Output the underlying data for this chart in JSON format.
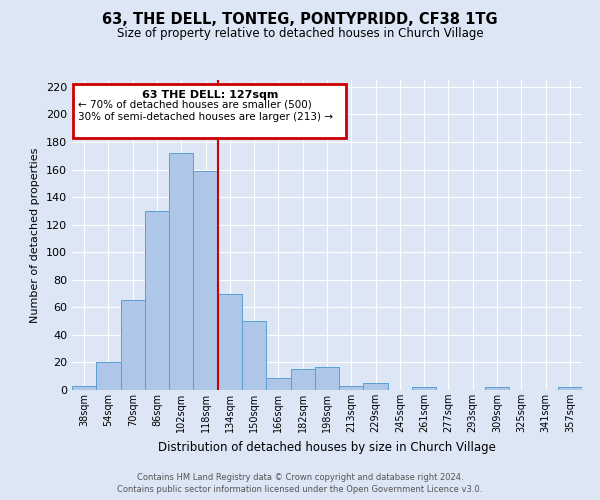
{
  "title": "63, THE DELL, TONTEG, PONTYPRIDD, CF38 1TG",
  "subtitle": "Size of property relative to detached houses in Church Village",
  "xlabel": "Distribution of detached houses by size in Church Village",
  "ylabel": "Number of detached properties",
  "bar_labels": [
    "38sqm",
    "54sqm",
    "70sqm",
    "86sqm",
    "102sqm",
    "118sqm",
    "134sqm",
    "150sqm",
    "166sqm",
    "182sqm",
    "198sqm",
    "213sqm",
    "229sqm",
    "245sqm",
    "261sqm",
    "277sqm",
    "293sqm",
    "309sqm",
    "325sqm",
    "341sqm",
    "357sqm"
  ],
  "bar_heights": [
    3,
    20,
    65,
    130,
    172,
    159,
    70,
    50,
    9,
    15,
    17,
    3,
    5,
    0,
    2,
    0,
    0,
    2,
    0,
    0,
    2
  ],
  "bar_color": "#aec6e8",
  "bar_edge_color": "#5a9fd4",
  "ylim": [
    0,
    225
  ],
  "yticks": [
    0,
    20,
    40,
    60,
    80,
    100,
    120,
    140,
    160,
    180,
    200,
    220
  ],
  "vline_x_index": 5.5,
  "annotation_title": "63 THE DELL: 127sqm",
  "annotation_line1": "← 70% of detached houses are smaller (500)",
  "annotation_line2": "30% of semi-detached houses are larger (213) →",
  "annotation_box_color": "#cc0000",
  "background_color": "#dce6f5",
  "footer_line1": "Contains HM Land Registry data © Crown copyright and database right 2024.",
  "footer_line2": "Contains public sector information licensed under the Open Government Licence v3.0.",
  "grid_color": "#ffffff",
  "vline_color": "#cc0000"
}
